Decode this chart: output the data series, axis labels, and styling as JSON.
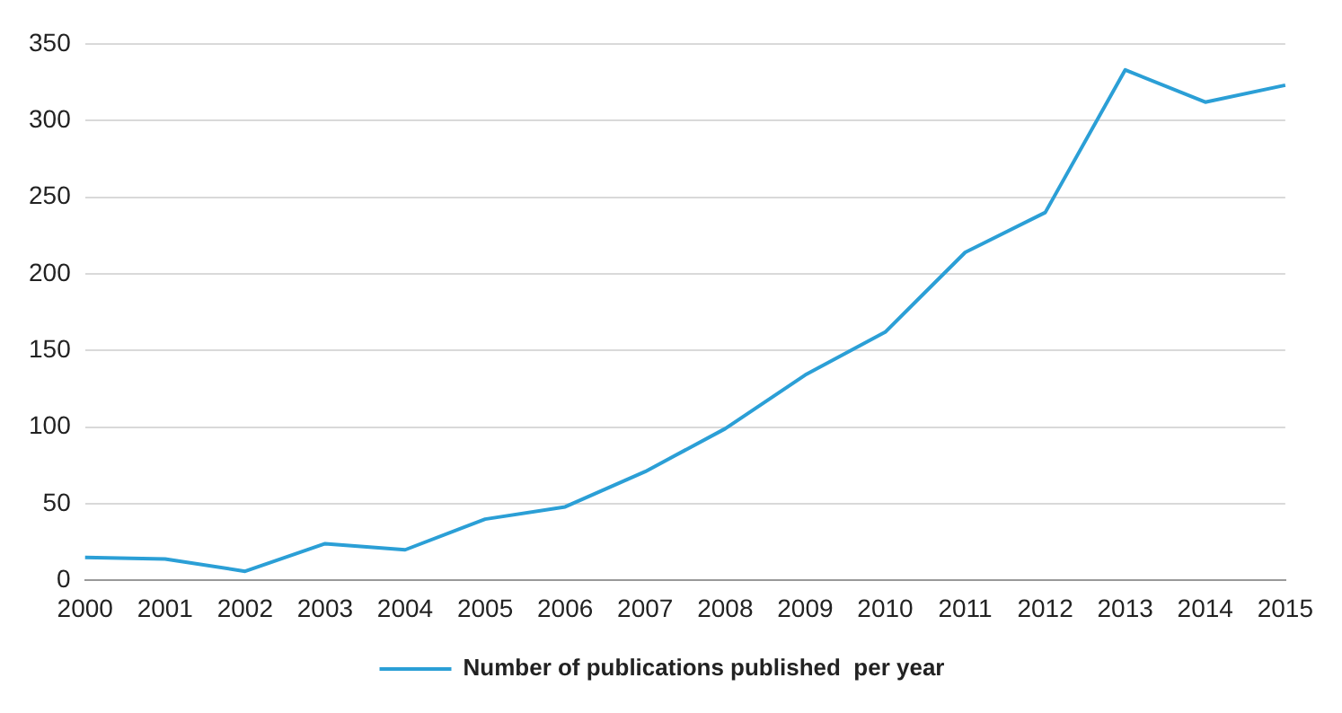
{
  "chart_data": {
    "type": "line",
    "categories": [
      "2000",
      "2001",
      "2002",
      "2003",
      "2004",
      "2005",
      "2006",
      "2007",
      "2008",
      "2009",
      "2010",
      "2011",
      "2012",
      "2013",
      "2014",
      "2015"
    ],
    "series": [
      {
        "name": "Number of publications published  per year",
        "color": "#2b9fd6",
        "values": [
          15,
          14,
          6,
          24,
          20,
          40,
          48,
          71,
          99,
          134,
          162,
          214,
          240,
          333,
          312,
          323
        ]
      }
    ],
    "ylim": [
      0,
      350
    ],
    "yticks": [
      0,
      50,
      100,
      150,
      200,
      250,
      300,
      350
    ],
    "grid": "y",
    "legend": "bottom",
    "marker": "none",
    "line_style": "solid"
  }
}
